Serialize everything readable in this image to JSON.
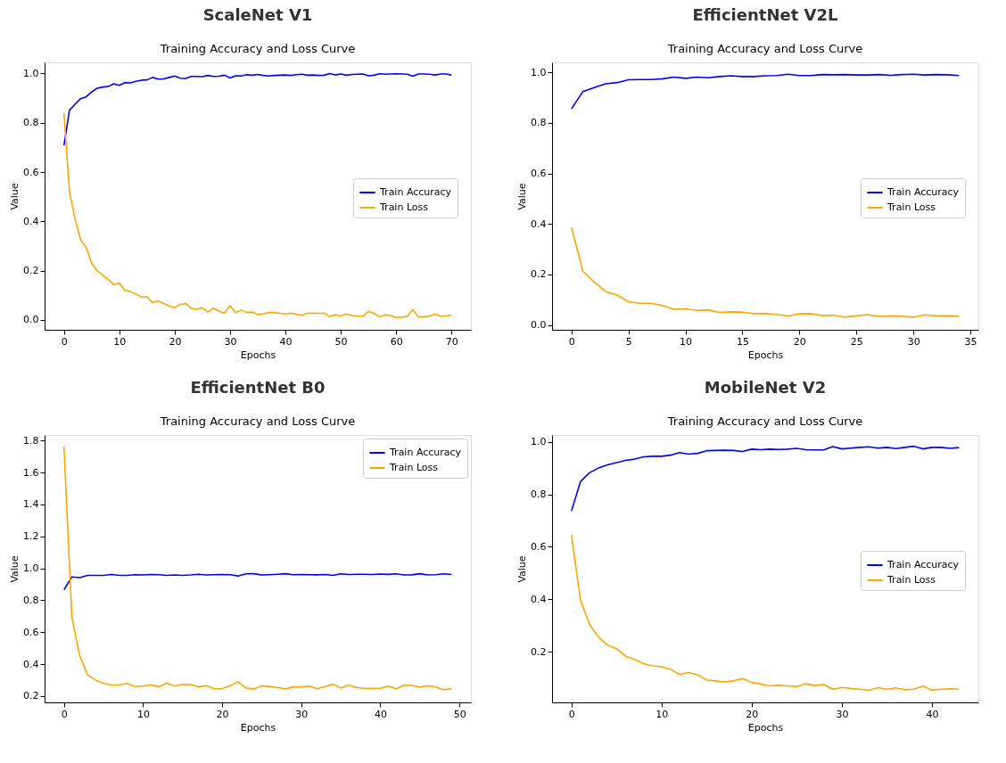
{
  "chart_data": [
    {
      "type": "line",
      "title": "ScaleNet V1",
      "subtitle": "Training Accuracy and Loss Curve",
      "xlabel": "Epochs",
      "ylabel": "Value",
      "legend": "right",
      "grid": false,
      "line_style": "solid",
      "x": [
        0,
        1,
        2,
        3,
        4,
        5,
        6,
        7,
        8,
        9,
        10,
        11,
        12,
        13,
        14,
        15,
        16,
        17,
        18,
        19,
        20,
        21,
        22,
        23,
        24,
        25,
        26,
        27,
        28,
        29,
        30,
        31,
        32,
        33,
        34,
        35,
        36,
        37,
        38,
        39,
        40,
        41,
        42,
        43,
        44,
        45,
        46,
        47,
        48,
        49,
        50,
        51,
        52,
        53,
        54,
        55,
        56,
        57,
        58,
        59,
        60,
        61,
        62,
        63,
        64,
        65,
        66,
        67,
        68,
        69,
        70
      ],
      "xlim": [
        -3.5,
        73.5
      ],
      "xticks": [
        0,
        10,
        20,
        30,
        40,
        50,
        60,
        70
      ],
      "ylim": [
        -0.04,
        1.045
      ],
      "yticks": [
        {
          "value": 0,
          "label": "0.0"
        },
        {
          "value": 0.2,
          "label": "0.2"
        },
        {
          "value": 0.4,
          "label": "0.4"
        },
        {
          "value": 0.6,
          "label": "0.6"
        },
        {
          "value": 0.8,
          "label": "0.8"
        },
        {
          "value": 1,
          "label": "1.0"
        }
      ],
      "series": [
        {
          "name": "Train Accuracy",
          "color": "#0000ff",
          "values": [
            0.708,
            0.851,
            0.875,
            0.898,
            0.905,
            0.925,
            0.94,
            0.945,
            0.947,
            0.958,
            0.952,
            0.963,
            0.962,
            0.968,
            0.973,
            0.974,
            0.984,
            0.977,
            0.978,
            0.984,
            0.99,
            0.981,
            0.98,
            0.988,
            0.988,
            0.987,
            0.992,
            0.988,
            0.989,
            0.993,
            0.982,
            0.991,
            0.99,
            0.995,
            0.993,
            0.996,
            0.992,
            0.99,
            0.992,
            0.993,
            0.994,
            0.992,
            0.995,
            0.997,
            0.993,
            0.994,
            0.992,
            0.993,
            1.0,
            0.994,
            0.998,
            0.993,
            0.996,
            0.997,
            0.998,
            0.991,
            0.993,
            0.999,
            0.997,
            0.998,
            0.999,
            0.998,
            0.997,
            0.989,
            0.998,
            0.998,
            0.997,
            0.994,
            0.998,
            0.998,
            0.994
          ]
        },
        {
          "name": "Train Loss",
          "color": "#ffa500",
          "values": [
            0.84,
            0.52,
            0.41,
            0.325,
            0.295,
            0.23,
            0.2,
            0.182,
            0.165,
            0.143,
            0.15,
            0.12,
            0.115,
            0.105,
            0.092,
            0.094,
            0.07,
            0.077,
            0.067,
            0.057,
            0.05,
            0.063,
            0.066,
            0.047,
            0.043,
            0.049,
            0.032,
            0.047,
            0.036,
            0.028,
            0.058,
            0.03,
            0.04,
            0.031,
            0.032,
            0.022,
            0.025,
            0.03,
            0.03,
            0.027,
            0.024,
            0.028,
            0.023,
            0.019,
            0.028,
            0.027,
            0.027,
            0.028,
            0.014,
            0.021,
            0.016,
            0.024,
            0.018,
            0.016,
            0.015,
            0.035,
            0.027,
            0.012,
            0.021,
            0.018,
            0.01,
            0.011,
            0.014,
            0.042,
            0.012,
            0.012,
            0.015,
            0.024,
            0.015,
            0.017,
            0.02
          ]
        }
      ]
    },
    {
      "type": "line",
      "title": "EfficientNet V2L",
      "subtitle": "Training Accuracy and Loss Curve",
      "xlabel": "Epochs",
      "ylabel": "Value",
      "legend": "right",
      "grid": false,
      "line_style": "solid",
      "x": [
        0,
        1,
        2,
        3,
        4,
        5,
        6,
        7,
        8,
        9,
        10,
        11,
        12,
        13,
        14,
        15,
        16,
        17,
        18,
        19,
        20,
        21,
        22,
        23,
        24,
        25,
        26,
        27,
        28,
        29,
        30,
        31,
        32,
        33,
        34
      ],
      "xlim": [
        -1.7,
        35.7
      ],
      "xticks": [
        0,
        5,
        10,
        15,
        20,
        25,
        30,
        35
      ],
      "ylim": [
        -0.019,
        1.04
      ],
      "yticks": [
        {
          "value": 0,
          "label": "0.0"
        },
        {
          "value": 0.2,
          "label": "0.2"
        },
        {
          "value": 0.4,
          "label": "0.4"
        },
        {
          "value": 0.6,
          "label": "0.6"
        },
        {
          "value": 0.8,
          "label": "0.8"
        },
        {
          "value": 1,
          "label": "1.0"
        }
      ],
      "series": [
        {
          "name": "Train Accuracy",
          "color": "#0000ff",
          "values": [
            0.856,
            0.924,
            0.94,
            0.955,
            0.96,
            0.971,
            0.972,
            0.972,
            0.975,
            0.982,
            0.977,
            0.982,
            0.979,
            0.984,
            0.987,
            0.984,
            0.984,
            0.987,
            0.988,
            0.993,
            0.988,
            0.988,
            0.992,
            0.991,
            0.992,
            0.99,
            0.99,
            0.992,
            0.989,
            0.992,
            0.993,
            0.99,
            0.992,
            0.991,
            0.988
          ]
        },
        {
          "name": "Train Loss",
          "color": "#ffa500",
          "values": [
            0.388,
            0.213,
            0.17,
            0.132,
            0.119,
            0.092,
            0.086,
            0.086,
            0.077,
            0.062,
            0.064,
            0.058,
            0.06,
            0.05,
            0.052,
            0.051,
            0.045,
            0.046,
            0.042,
            0.036,
            0.044,
            0.045,
            0.037,
            0.039,
            0.031,
            0.036,
            0.041,
            0.034,
            0.036,
            0.035,
            0.031,
            0.04,
            0.036,
            0.037,
            0.034
          ]
        }
      ]
    },
    {
      "type": "line",
      "title": "EfficientNet B0",
      "subtitle": "Training Accuracy and Loss Curve",
      "xlabel": "Epochs",
      "ylabel": "Value",
      "legend": "top right",
      "grid": false,
      "line_style": "solid",
      "x": [
        0,
        1,
        2,
        3,
        4,
        5,
        6,
        7,
        8,
        9,
        10,
        11,
        12,
        13,
        14,
        15,
        16,
        17,
        18,
        19,
        20,
        21,
        22,
        23,
        24,
        25,
        26,
        27,
        28,
        29,
        30,
        31,
        32,
        33,
        34,
        35,
        36,
        37,
        38,
        39,
        40,
        41,
        42,
        43,
        44,
        45,
        46,
        47,
        48,
        49
      ],
      "xlim": [
        -2.45,
        51.45
      ],
      "xticks": [
        0,
        10,
        20,
        30,
        40,
        50
      ],
      "ylim": [
        0.16,
        1.835
      ],
      "yticks": [
        0.2,
        0.4,
        0.6,
        0.8,
        {
          "value": 1,
          "label": "1.0"
        },
        1.2,
        1.4,
        1.6,
        1.8
      ],
      "series": [
        {
          "name": "Train Accuracy",
          "color": "#0000ff",
          "values": [
            0.865,
            0.946,
            0.942,
            0.956,
            0.956,
            0.956,
            0.961,
            0.956,
            0.956,
            0.96,
            0.958,
            0.961,
            0.96,
            0.956,
            0.958,
            0.956,
            0.958,
            0.963,
            0.958,
            0.96,
            0.961,
            0.96,
            0.952,
            0.965,
            0.966,
            0.958,
            0.96,
            0.963,
            0.966,
            0.96,
            0.961,
            0.96,
            0.959,
            0.961,
            0.956,
            0.965,
            0.961,
            0.963,
            0.963,
            0.961,
            0.964,
            0.962,
            0.965,
            0.958,
            0.959,
            0.966,
            0.958,
            0.96,
            0.965,
            0.961
          ]
        },
        {
          "name": "Train Loss",
          "color": "#ffa500",
          "values": [
            1.762,
            0.694,
            0.45,
            0.331,
            0.3,
            0.28,
            0.269,
            0.27,
            0.279,
            0.259,
            0.262,
            0.271,
            0.257,
            0.28,
            0.262,
            0.273,
            0.272,
            0.257,
            0.265,
            0.245,
            0.246,
            0.263,
            0.289,
            0.25,
            0.244,
            0.264,
            0.26,
            0.252,
            0.245,
            0.257,
            0.256,
            0.262,
            0.247,
            0.258,
            0.274,
            0.25,
            0.269,
            0.252,
            0.248,
            0.248,
            0.248,
            0.262,
            0.245,
            0.267,
            0.266,
            0.256,
            0.264,
            0.256,
            0.239,
            0.246
          ]
        }
      ]
    },
    {
      "type": "line",
      "title": "MobileNet V2",
      "subtitle": "Training Accuracy and Loss Curve",
      "xlabel": "Epochs",
      "ylabel": "Value",
      "legend": "right",
      "grid": false,
      "line_style": "solid",
      "x": [
        0,
        1,
        2,
        3,
        4,
        5,
        6,
        7,
        8,
        9,
        10,
        11,
        12,
        13,
        14,
        15,
        16,
        17,
        18,
        19,
        20,
        21,
        22,
        23,
        24,
        25,
        26,
        27,
        28,
        29,
        30,
        31,
        32,
        33,
        34,
        35,
        36,
        37,
        38,
        39,
        40,
        41,
        42,
        43
      ],
      "xlim": [
        -2.15,
        45.15
      ],
      "xticks": [
        0,
        10,
        20,
        30,
        40
      ],
      "ylim": [
        0.007,
        1.026
      ],
      "yticks": [
        0.2,
        0.4,
        0.6,
        0.8,
        {
          "value": 1,
          "label": "1.0"
        }
      ],
      "series": [
        {
          "name": "Train Accuracy",
          "color": "#0000ff",
          "values": [
            0.736,
            0.848,
            0.882,
            0.9,
            0.912,
            0.921,
            0.929,
            0.934,
            0.943,
            0.945,
            0.945,
            0.949,
            0.959,
            0.953,
            0.956,
            0.966,
            0.967,
            0.968,
            0.967,
            0.963,
            0.972,
            0.97,
            0.972,
            0.971,
            0.972,
            0.975,
            0.97,
            0.969,
            0.969,
            0.982,
            0.973,
            0.976,
            0.979,
            0.981,
            0.976,
            0.979,
            0.974,
            0.979,
            0.983,
            0.973,
            0.979,
            0.979,
            0.975,
            0.978
          ]
        },
        {
          "name": "Train Loss",
          "color": "#ffa500",
          "values": [
            0.646,
            0.398,
            0.304,
            0.256,
            0.225,
            0.212,
            0.183,
            0.171,
            0.155,
            0.146,
            0.143,
            0.133,
            0.113,
            0.121,
            0.112,
            0.093,
            0.089,
            0.085,
            0.089,
            0.098,
            0.083,
            0.077,
            0.07,
            0.072,
            0.07,
            0.067,
            0.078,
            0.071,
            0.075,
            0.057,
            0.064,
            0.06,
            0.057,
            0.053,
            0.063,
            0.057,
            0.062,
            0.055,
            0.057,
            0.069,
            0.054,
            0.057,
            0.059,
            0.057
          ]
        }
      ]
    }
  ]
}
